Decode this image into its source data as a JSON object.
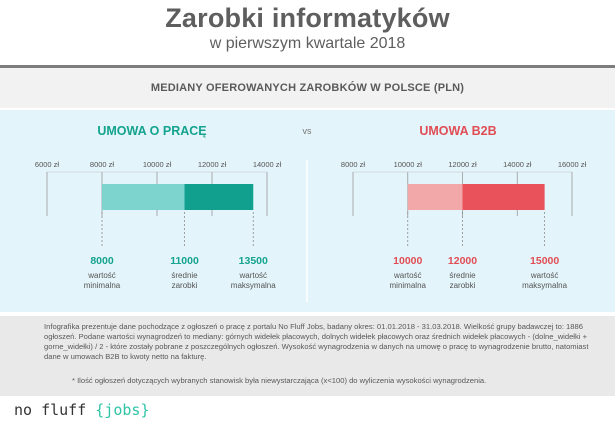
{
  "title": "Zarobki informatyków",
  "subtitle": "w pierwszym kwartale 2018",
  "section_heading": "MEDIANY OFEROWANYCH ZAROBKÓW W POLSCE (PLN)",
  "vs_label": "vs",
  "chart_data": [
    {
      "type": "bar",
      "title": "UMOWA O PRACĘ",
      "axis_ticks": [
        6000,
        8000,
        10000,
        12000,
        14000
      ],
      "axis_tick_labels": [
        "6000 zł",
        "8000 zł",
        "10000 zł",
        "12000 zł",
        "14000 zł"
      ],
      "xlim": [
        6000,
        14000
      ],
      "min": 8000,
      "median": 11000,
      "max": 13500,
      "value_labels": [
        "8000",
        "11000",
        "13500"
      ],
      "captions": [
        [
          "wartość",
          "minimalna"
        ],
        [
          "średnie",
          "zarobki"
        ],
        [
          "wartość",
          "maksymalna"
        ]
      ],
      "colors": {
        "title": "#13a38e",
        "low": "#7dd3cd",
        "high": "#12a08e",
        "values": "#13a38e"
      }
    },
    {
      "type": "bar",
      "title": "UMOWA B2B",
      "axis_ticks": [
        8000,
        10000,
        12000,
        14000,
        16000
      ],
      "axis_tick_labels": [
        "8000 zł",
        "10000 zł",
        "12000 zł",
        "14000 zł",
        "16000 zł"
      ],
      "xlim": [
        8000,
        16000
      ],
      "min": 10000,
      "median": 12000,
      "max": 15000,
      "value_labels": [
        "10000",
        "12000",
        "15000"
      ],
      "captions": [
        [
          "wartość",
          "minimalna"
        ],
        [
          "średnie",
          "zarobki"
        ],
        [
          "wartość",
          "maksymalna"
        ]
      ],
      "colors": {
        "title": "#e04d55",
        "low": "#f2a8a8",
        "high": "#e9525a",
        "values": "#e04d55"
      }
    }
  ],
  "footer": {
    "text": "Infografika prezentuje dane pochodzące z ogłoszeń o pracę z portalu No Fluff Jobs, badany okres: 01.01.2018 - 31.03.2018. Wielkość grupy badawczej to: 1886 ogłoszeń. Podane wartości wynagrodzeń to mediany: górnych widełek płacowych, dolnych widełek płacowych oraz średnich widełek płacowych - (dolne_widełki + gorne_widełki) / 2 - które zostały pobrane z poszczególnych ogłoszeń. Wysokość wynagrodzenia w danych na umowę o pracę to wynagrodzenie brutto, natomiast dane w umowach B2B to kwoty netto na fakturę.",
    "footnote": "* Ilość ogłoszeń dotyczących wybranych stanowisk była niewystarczająca (x<100) do wyliczenia wysokości wynagrodzenia."
  },
  "logo": {
    "prefix": "no fluff ",
    "open": "{",
    "word": "jobs",
    "close": "}"
  }
}
